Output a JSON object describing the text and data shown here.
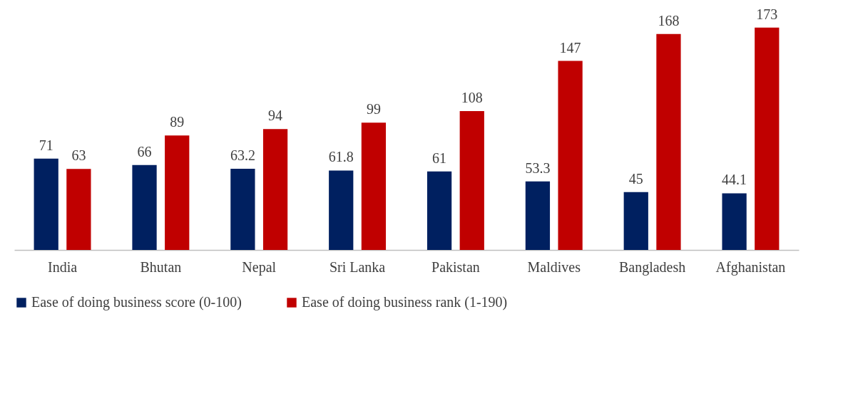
{
  "chart_data": {
    "type": "bar",
    "categories": [
      "India",
      "Bhutan",
      "Nepal",
      "Sri Lanka",
      "Pakistan",
      "Maldives",
      "Bangladesh",
      "Afghanistan"
    ],
    "series": [
      {
        "name": "Ease of doing business score (0-100)",
        "color": "#002060",
        "values": [
          71,
          66,
          63.2,
          61.8,
          61,
          53.3,
          45,
          44.1
        ]
      },
      {
        "name": "Ease of doing business rank (1-190)",
        "color": "#c00000",
        "values": [
          63,
          89,
          94,
          99,
          108,
          147,
          168,
          173
        ]
      }
    ],
    "data_labels": true,
    "grid": false,
    "legend": "bottom",
    "tick_labels": "x"
  }
}
